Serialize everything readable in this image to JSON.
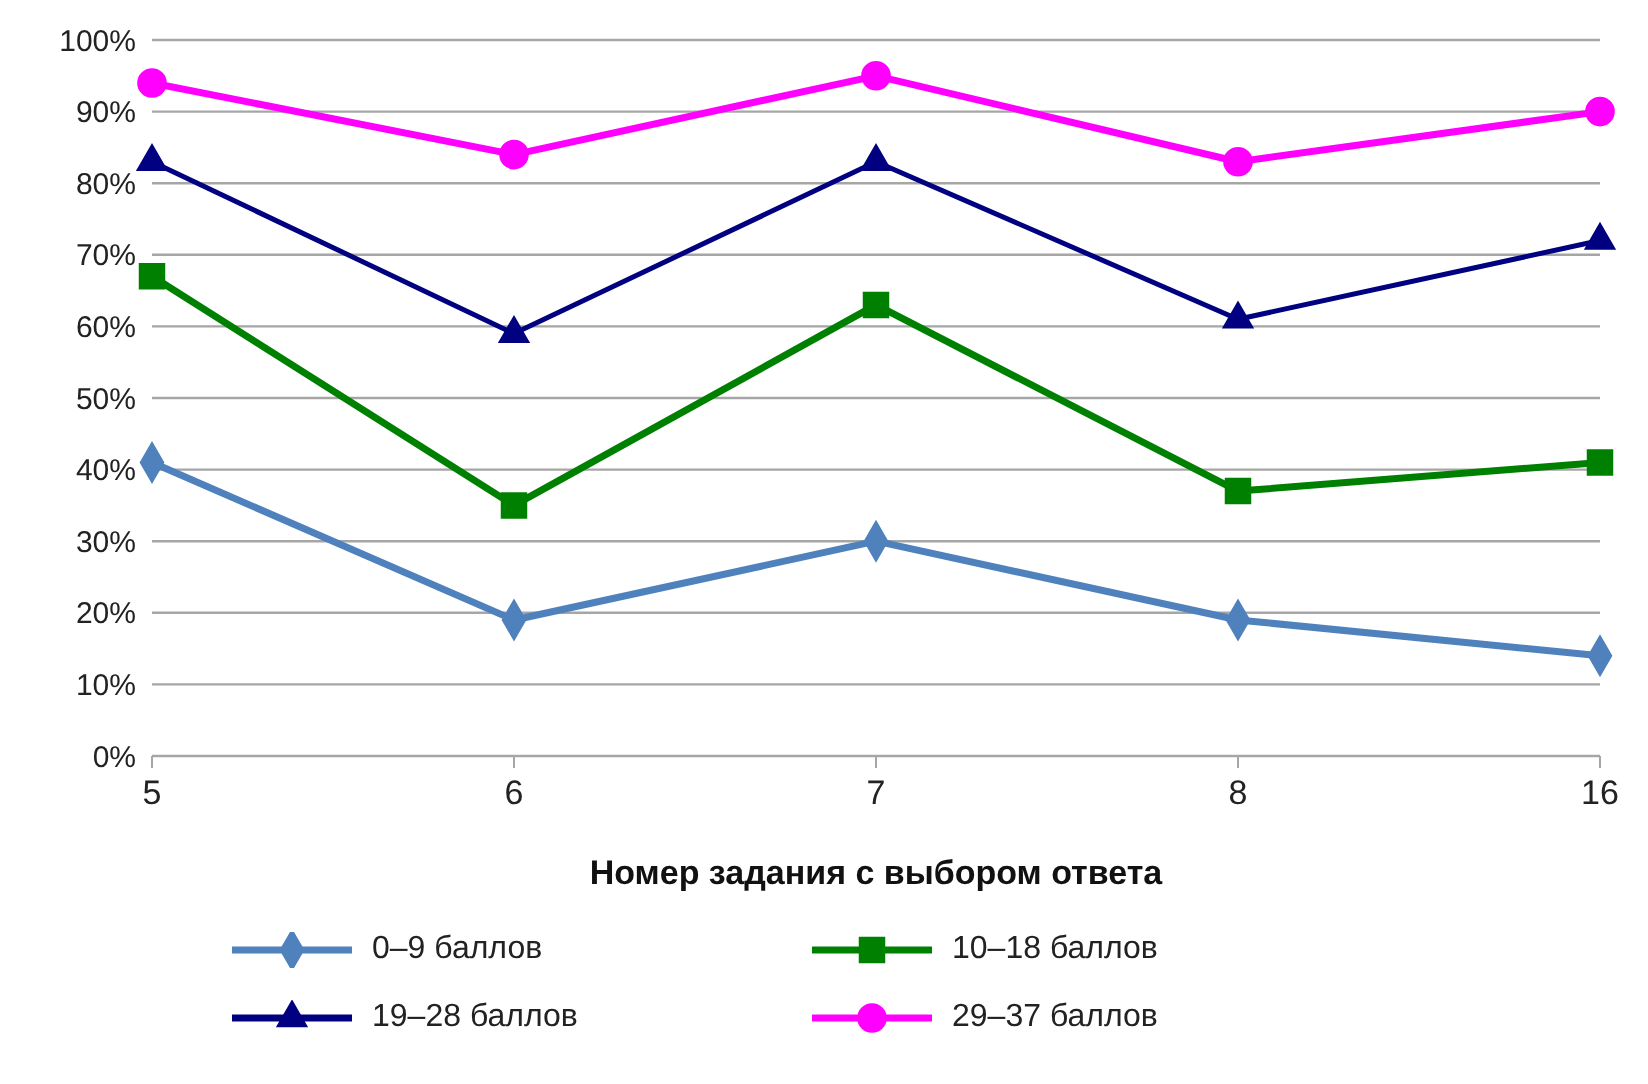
{
  "chart_data": {
    "type": "line",
    "xlabel": "Номер задания с выбором ответа",
    "categories": [
      "5",
      "6",
      "7",
      "8",
      "16"
    ],
    "series": [
      {
        "name": "0–9 баллов",
        "color": "#4f81bd",
        "marker": "diamond",
        "values": [
          41,
          19,
          30,
          19,
          14
        ]
      },
      {
        "name": "10–18 баллов",
        "color": "#008000",
        "marker": "square",
        "values": [
          67,
          35,
          63,
          37,
          41
        ]
      },
      {
        "name": "19–28 баллов",
        "color": "#000080",
        "marker": "triangle",
        "values": [
          83,
          59,
          83,
          61,
          72
        ]
      },
      {
        "name": "29–37 баллов",
        "color": "#ff00ff",
        "marker": "circle",
        "values": [
          94,
          84,
          95,
          83,
          90
        ]
      }
    ],
    "ylim": [
      0,
      100
    ],
    "yticks": [
      {
        "value": 0,
        "label": "0%"
      },
      {
        "value": 10,
        "label": "10%"
      },
      {
        "value": 20,
        "label": "20%"
      },
      {
        "value": 30,
        "label": "30%"
      },
      {
        "value": 40,
        "label": "40%"
      },
      {
        "value": 50,
        "label": "50%"
      },
      {
        "value": 60,
        "label": "60%"
      },
      {
        "value": 70,
        "label": "70%"
      },
      {
        "value": 80,
        "label": "80%"
      },
      {
        "value": 90,
        "label": "90%"
      },
      {
        "value": 100,
        "label": "100%"
      }
    ],
    "grid": "y",
    "legend": "bottom"
  }
}
